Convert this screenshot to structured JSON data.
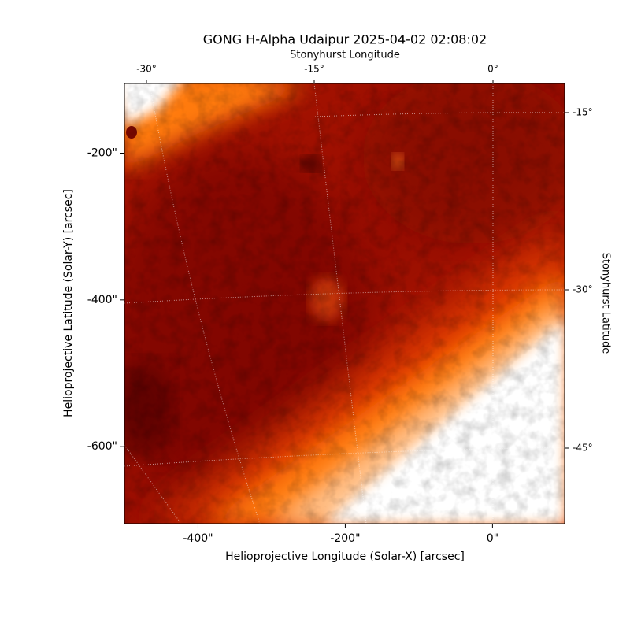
{
  "chart_data": {
    "type": "image",
    "title": "GONG H-Alpha Udaipur 2025-04-02 02:08:02",
    "xlabel": "Helioprojective Longitude (Solar-X) [arcsec]",
    "ylabel": "Helioprojective Latitude (Solar-Y) [arcsec]",
    "x2label": "Stonyhurst Longitude",
    "y2label": "Stonyhurst Latitude",
    "xlim": [
      -500,
      98
    ],
    "ylim": [
      -705,
      -105
    ],
    "xticks": [
      {
        "value": -400,
        "label": "-400\""
      },
      {
        "value": -200,
        "label": "-200\""
      },
      {
        "value": 0,
        "label": "0\""
      }
    ],
    "yticks": [
      {
        "value": -200,
        "label": "-200\""
      },
      {
        "value": -400,
        "label": "-400\""
      },
      {
        "value": -600,
        "label": "-600\""
      }
    ],
    "x2ticks": [
      {
        "value": -30,
        "label": "-30°"
      },
      {
        "value": -15,
        "label": "-15°"
      },
      {
        "value": 0,
        "label": "0°"
      }
    ],
    "y2ticks": [
      {
        "value": -15,
        "label": "-15°"
      },
      {
        "value": -30,
        "label": "-30°"
      },
      {
        "value": -45,
        "label": "-45°"
      }
    ]
  }
}
